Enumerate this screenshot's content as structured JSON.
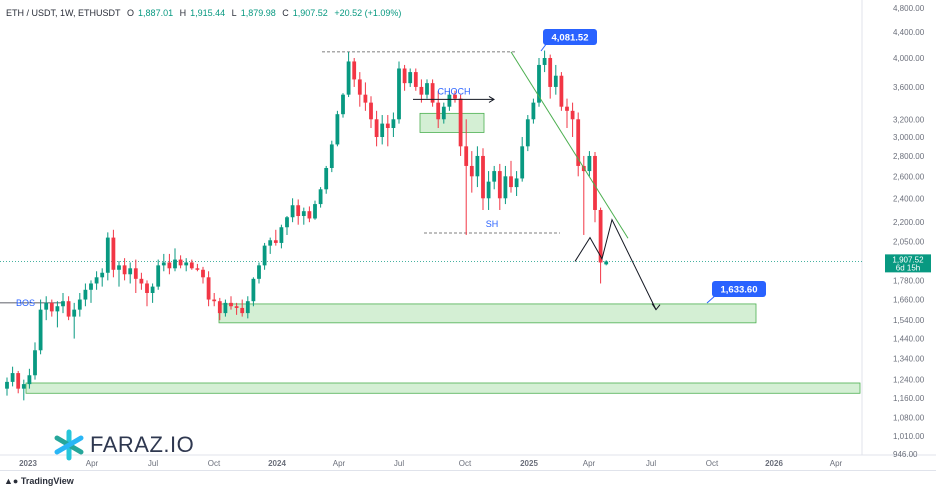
{
  "header": {
    "symbol": "ETH / USDT, 1W, ETHUSDT",
    "open_label": "O",
    "open": "1,887.01",
    "high_label": "H",
    "high": "1,915.44",
    "low_label": "L",
    "low": "1,879.98",
    "close_label": "C",
    "close": "1,907.52",
    "change": "+20.52 (+1.09%)"
  },
  "brand": {
    "logo_text": "FARAZ.IO",
    "platform": "TradingView",
    "platform_icon": "tradingview-logo-icon"
  },
  "colors": {
    "up": "#089981",
    "down": "#f23645",
    "zone_fill": "#d4efd4",
    "zone_border": "#4caf50",
    "label_blue": "#2962ff",
    "trendline": "#4caf50"
  },
  "chart_data": {
    "type": "candlestick",
    "y_axis": {
      "scale": "log",
      "ticks": [
        "4,800.00",
        "4,400.00",
        "4,000.00",
        "3,600.00",
        "3,200.00",
        "3,000.00",
        "2,800.00",
        "2,600.00",
        "2,400.00",
        "2,200.00",
        "2,050.00",
        "1,780.00",
        "1,660.00",
        "1,540.00",
        "1,440.00",
        "1,340.00",
        "1,240.00",
        "1,160.00",
        "1,080.00",
        "1,010.00",
        "946.00"
      ]
    },
    "x_axis": {
      "ticks": [
        "2023",
        "Apr",
        "Jul",
        "Oct",
        "2024",
        "Apr",
        "Jul",
        "Oct",
        "2025",
        "Apr",
        "Jul",
        "Oct",
        "2026",
        "Apr"
      ]
    },
    "last_price": {
      "value": "1,907.52",
      "countdown": "6d 15h"
    },
    "annotations": {
      "bos": "BOS",
      "choch": "CHOCH",
      "sh": "SH",
      "high_label": "4,081.52",
      "target_label": "1,633.60"
    },
    "candles": [
      [
        1200,
        1250,
        1170,
        1230
      ],
      [
        1230,
        1300,
        1210,
        1270
      ],
      [
        1270,
        1280,
        1180,
        1200
      ],
      [
        1200,
        1240,
        1150,
        1220
      ],
      [
        1220,
        1290,
        1200,
        1260
      ],
      [
        1260,
        1420,
        1240,
        1380
      ],
      [
        1380,
        1660,
        1360,
        1600
      ],
      [
        1600,
        1680,
        1540,
        1640
      ],
      [
        1640,
        1660,
        1560,
        1590
      ],
      [
        1590,
        1650,
        1500,
        1620
      ],
      [
        1620,
        1700,
        1580,
        1650
      ],
      [
        1650,
        1680,
        1540,
        1560
      ],
      [
        1560,
        1640,
        1440,
        1600
      ],
      [
        1600,
        1700,
        1560,
        1660
      ],
      [
        1660,
        1760,
        1620,
        1720
      ],
      [
        1720,
        1780,
        1640,
        1760
      ],
      [
        1760,
        1840,
        1720,
        1800
      ],
      [
        1800,
        1860,
        1740,
        1830
      ],
      [
        1830,
        2120,
        1780,
        2080
      ],
      [
        2080,
        2140,
        1800,
        1850
      ],
      [
        1850,
        1910,
        1740,
        1880
      ],
      [
        1880,
        1930,
        1780,
        1820
      ],
      [
        1820,
        1900,
        1760,
        1860
      ],
      [
        1860,
        1920,
        1700,
        1790
      ],
      [
        1790,
        1830,
        1720,
        1760
      ],
      [
        1760,
        1780,
        1620,
        1700
      ],
      [
        1700,
        1760,
        1640,
        1740
      ],
      [
        1740,
        1920,
        1720,
        1880
      ],
      [
        1880,
        1960,
        1840,
        1900
      ],
      [
        1900,
        1960,
        1820,
        1860
      ],
      [
        1860,
        2000,
        1840,
        1920
      ],
      [
        1920,
        1950,
        1860,
        1880
      ],
      [
        1880,
        1930,
        1840,
        1900
      ],
      [
        1900,
        1920,
        1850,
        1860
      ],
      [
        1860,
        1890,
        1840,
        1850
      ],
      [
        1850,
        1870,
        1760,
        1800
      ],
      [
        1800,
        1840,
        1620,
        1660
      ],
      [
        1660,
        1700,
        1620,
        1650
      ],
      [
        1650,
        1670,
        1540,
        1580
      ],
      [
        1580,
        1660,
        1560,
        1640
      ],
      [
        1640,
        1680,
        1600,
        1620
      ],
      [
        1620,
        1640,
        1570,
        1610
      ],
      [
        1610,
        1660,
        1560,
        1580
      ],
      [
        1580,
        1680,
        1550,
        1650
      ],
      [
        1650,
        1800,
        1620,
        1790
      ],
      [
        1790,
        1900,
        1760,
        1880
      ],
      [
        1880,
        2040,
        1850,
        2020
      ],
      [
        2020,
        2080,
        1960,
        2060
      ],
      [
        2060,
        2140,
        2020,
        2040
      ],
      [
        2040,
        2180,
        2000,
        2160
      ],
      [
        2160,
        2250,
        2100,
        2240
      ],
      [
        2240,
        2400,
        2200,
        2340
      ],
      [
        2340,
        2390,
        2180,
        2250
      ],
      [
        2250,
        2320,
        2180,
        2290
      ],
      [
        2290,
        2330,
        2200,
        2230
      ],
      [
        2230,
        2380,
        2220,
        2350
      ],
      [
        2350,
        2500,
        2320,
        2480
      ],
      [
        2480,
        2700,
        2440,
        2680
      ],
      [
        2680,
        2960,
        2640,
        2920
      ],
      [
        2920,
        3300,
        2900,
        3260
      ],
      [
        3260,
        3520,
        3220,
        3500
      ],
      [
        3500,
        4090,
        3470,
        3950
      ],
      [
        3950,
        4000,
        3600,
        3700
      ],
      [
        3700,
        3800,
        3350,
        3500
      ],
      [
        3500,
        3660,
        3300,
        3400
      ],
      [
        3400,
        3480,
        3100,
        3200
      ],
      [
        3200,
        3300,
        2900,
        3000
      ],
      [
        3000,
        3250,
        2920,
        3150
      ],
      [
        3150,
        3250,
        2900,
        3100
      ],
      [
        3100,
        3280,
        3000,
        3200
      ],
      [
        3200,
        3950,
        3150,
        3850
      ],
      [
        3850,
        3900,
        3550,
        3650
      ],
      [
        3650,
        3850,
        3600,
        3800
      ],
      [
        3800,
        3850,
        3550,
        3600
      ],
      [
        3600,
        3700,
        3400,
        3500
      ],
      [
        3500,
        3700,
        3450,
        3650
      ],
      [
        3650,
        3700,
        3350,
        3400
      ],
      [
        3400,
        3550,
        3100,
        3200
      ],
      [
        3200,
        3400,
        3150,
        3350
      ],
      [
        3350,
        3550,
        3300,
        3500
      ],
      [
        3500,
        3550,
        3400,
        3450
      ],
      [
        3450,
        3500,
        2800,
        2900
      ],
      [
        2900,
        3200,
        2100,
        2700
      ],
      [
        2700,
        2850,
        2450,
        2600
      ],
      [
        2600,
        2900,
        2500,
        2800
      ],
      [
        2800,
        2880,
        2300,
        2400
      ],
      [
        2400,
        2650,
        2300,
        2550
      ],
      [
        2550,
        2700,
        2480,
        2650
      ],
      [
        2650,
        2720,
        2300,
        2400
      ],
      [
        2400,
        2700,
        2350,
        2600
      ],
      [
        2600,
        2750,
        2450,
        2500
      ],
      [
        2500,
        2650,
        2420,
        2580
      ],
      [
        2580,
        3000,
        2550,
        2900
      ],
      [
        2900,
        3250,
        2850,
        3200
      ],
      [
        3200,
        3450,
        3150,
        3400
      ],
      [
        3400,
        4000,
        3350,
        3900
      ],
      [
        3900,
        4110,
        3800,
        4000
      ],
      [
        4000,
        4050,
        3450,
        3600
      ],
      [
        3600,
        3900,
        3500,
        3750
      ],
      [
        3750,
        3800,
        3300,
        3350
      ],
      [
        3350,
        3450,
        3100,
        3300
      ],
      [
        3300,
        3400,
        3000,
        3200
      ],
      [
        3200,
        3280,
        2600,
        2700
      ],
      [
        2700,
        2800,
        2100,
        2650
      ],
      [
        2650,
        2850,
        2600,
        2800
      ],
      [
        2800,
        2840,
        2200,
        2300
      ],
      [
        2300,
        2320,
        1760,
        1900
      ],
      [
        1887,
        1915,
        1880,
        1907
      ]
    ]
  }
}
